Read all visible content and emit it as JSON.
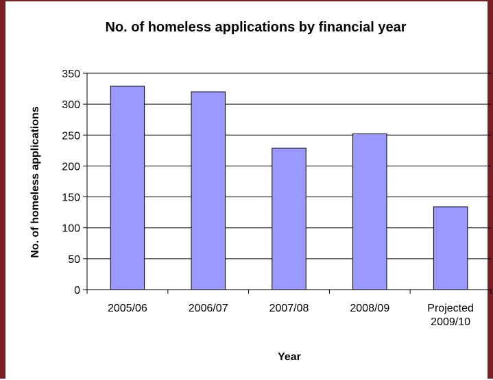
{
  "chart_data": {
    "type": "bar",
    "title": "No. of homeless applications by financial year",
    "xlabel": "Year",
    "ylabel": "No. of homeless applications",
    "categories": [
      "2005/06",
      "2006/07",
      "2007/08",
      "2008/09",
      "Projected 2009/10"
    ],
    "category_lines": [
      [
        "2005/06"
      ],
      [
        "2006/07"
      ],
      [
        "2007/08"
      ],
      [
        "2008/09"
      ],
      [
        "Projected",
        "2009/10"
      ]
    ],
    "values": [
      329,
      320,
      229,
      252,
      134
    ],
    "ylim": [
      0,
      350
    ],
    "yticks": [
      "0",
      "50",
      "100",
      "150",
      "200",
      "250",
      "300",
      "350"
    ],
    "grid": true,
    "legend": "none",
    "bar_color": "#9999ff",
    "frame_color": "#7a1f24"
  }
}
